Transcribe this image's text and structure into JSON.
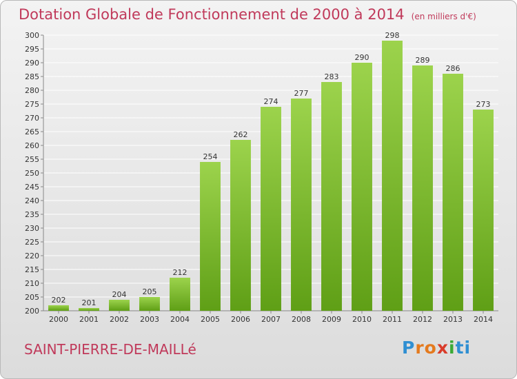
{
  "header": {
    "title": "Dotation Globale de Fonctionnement de 2000 à 2014",
    "subtitle": "(en milliers d'€)"
  },
  "footer": {
    "commune": "SAINT-PIERRE-DE-MAILLé",
    "logo_letters": [
      "P",
      "r",
      "o",
      "x",
      "i",
      "t",
      "i"
    ],
    "logo_colors": [
      "#2f8fd2",
      "#e47a1e",
      "#e47a1e",
      "#d93b2a",
      "#3aaa35",
      "#2f8fd2",
      "#2f8fd2"
    ]
  },
  "colors": {
    "title": "#c0395a",
    "bar_top": "#9cd34c",
    "bar_bottom": "#5f9f16",
    "grid": "#ffffff",
    "axis": "#888888"
  },
  "chart_data": {
    "type": "bar",
    "categories": [
      "2000",
      "2001",
      "2002",
      "2003",
      "2004",
      "2005",
      "2006",
      "2007",
      "2008",
      "2009",
      "2010",
      "2011",
      "2012",
      "2013",
      "2014"
    ],
    "values": [
      202,
      201,
      204,
      205,
      212,
      254,
      262,
      274,
      277,
      283,
      290,
      298,
      289,
      286,
      273
    ],
    "ylim": [
      200,
      300
    ],
    "ytick_step": 5,
    "grid": true,
    "title": "Dotation Globale de Fonctionnement de 2000 à 2014",
    "subtitle": "(en milliers d'€)",
    "xlabel": "",
    "ylabel": ""
  }
}
